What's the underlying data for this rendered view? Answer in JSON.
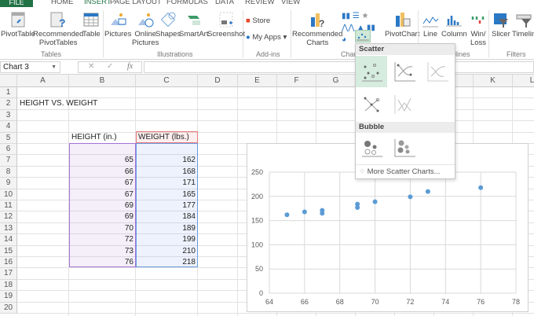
{
  "ribbon_tabs": [
    {
      "label": "FILE"
    },
    {
      "label": "HOME"
    },
    {
      "label": "INSERT",
      "active": true
    },
    {
      "label": "PAGE LAYOUT"
    },
    {
      "label": "FORMULAS"
    },
    {
      "label": "DATA"
    },
    {
      "label": "REVIEW"
    },
    {
      "label": "VIEW"
    }
  ],
  "groups": {
    "tables": {
      "label": "Tables",
      "pivottable": "PivotTable",
      "rec_pivot_1": "Recommended",
      "rec_pivot_2": "PivotTables",
      "table": "Table"
    },
    "illustrations": {
      "label": "Illustrations",
      "pictures": "Pictures",
      "online_1": "Online",
      "online_2": "Pictures",
      "shapes": "Shapes",
      "smartart": "SmartArt",
      "screenshot": "Screenshot"
    },
    "addins": {
      "label": "Add-ins",
      "store": "Store",
      "myapps": "My Apps"
    },
    "charts": {
      "label": "Char",
      "rec_1": "Recommended",
      "rec_2": "Charts",
      "pivotchart": "PivotChart"
    },
    "sparklines": {
      "label": "lines",
      "line": "Line",
      "column": "Column",
      "winloss_1": "Win/",
      "winloss_2": "Loss"
    },
    "filters": {
      "label": "Filters",
      "slicer": "Slicer",
      "timeline": "Timelin"
    }
  },
  "formula_bar": {
    "name_box": "Chart 3",
    "fx": "fx",
    "cancel": "✕",
    "enter": "✓",
    "value": ""
  },
  "columns": [
    "A",
    "B",
    "C",
    "D",
    "E",
    "F",
    "G",
    "H",
    "I",
    "J",
    "K",
    "L"
  ],
  "rows": [
    "1",
    "2",
    "3",
    "4",
    "5",
    "6",
    "7",
    "8",
    "9",
    "10",
    "11",
    "12",
    "13",
    "14",
    "15",
    "16",
    "17",
    "18",
    "19",
    "20"
  ],
  "sheet": {
    "title": "HEIGHT VS. WEIGHT",
    "header_height": "HEIGHT (in.)",
    "header_weight": "WEIGHT (lbs.)",
    "heights": [
      "65",
      "66",
      "67",
      "67",
      "69",
      "69",
      "70",
      "72",
      "73",
      "76"
    ],
    "weights": [
      "162",
      "168",
      "171",
      "165",
      "177",
      "184",
      "189",
      "199",
      "210",
      "218"
    ]
  },
  "dropdown": {
    "scatter_header": "Scatter",
    "bubble_header": "Bubble",
    "more": "More Scatter Charts..."
  },
  "colors": {
    "accent": "#217346",
    "series": "#5b9bd5",
    "selected_option": "#d5ecdf"
  },
  "chart_data": {
    "type": "scatter",
    "x": [
      65,
      66,
      67,
      67,
      69,
      69,
      70,
      72,
      73,
      76
    ],
    "y": [
      162,
      168,
      171,
      165,
      177,
      184,
      189,
      199,
      210,
      218
    ],
    "xlim": [
      64,
      78
    ],
    "ylim": [
      0,
      250
    ],
    "xticks": [
      "64",
      "66",
      "68",
      "70",
      "72",
      "74",
      "76",
      "78"
    ],
    "yticks": [
      "0",
      "50",
      "100",
      "150",
      "200",
      "250"
    ],
    "grid": true,
    "title": "",
    "xlabel": "",
    "ylabel": ""
  }
}
